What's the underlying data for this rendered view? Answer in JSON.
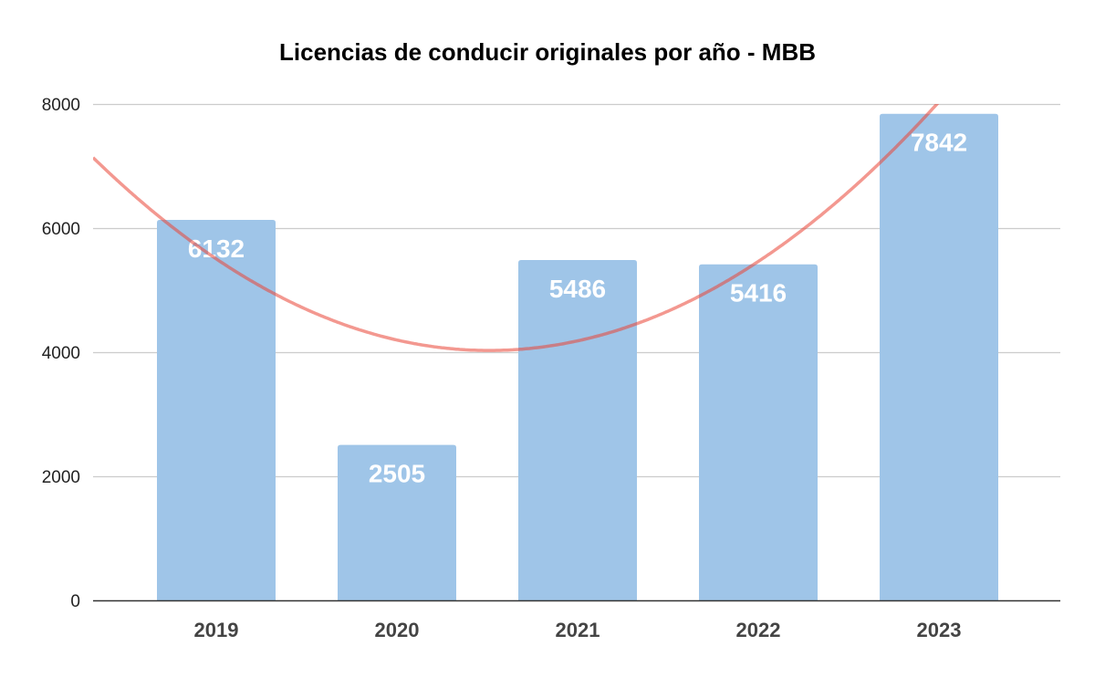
{
  "chart_data": {
    "type": "bar",
    "title": "Licencias de conducir originales por año - MBB",
    "xlabel": "",
    "ylabel": "",
    "categories": [
      "2019",
      "2020",
      "2021",
      "2022",
      "2023"
    ],
    "values": [
      6132,
      2505,
      5486,
      5416,
      7842
    ],
    "data_labels": [
      "6132",
      "2505",
      "5486",
      "5416",
      "7842"
    ],
    "ylim": [
      0,
      8000
    ],
    "yticks": [
      0,
      2000,
      4000,
      6000,
      8000
    ],
    "ytick_labels": [
      "0",
      "2000",
      "4000",
      "6000",
      "8000"
    ],
    "grid": true,
    "legend": "none",
    "trendline": {
      "type": "polynomial",
      "degree": 2
    },
    "colors": {
      "bar": "#9fc5e8",
      "trendline": "#ea4335",
      "grid": "#cccccc",
      "axis": "#333333"
    }
  }
}
